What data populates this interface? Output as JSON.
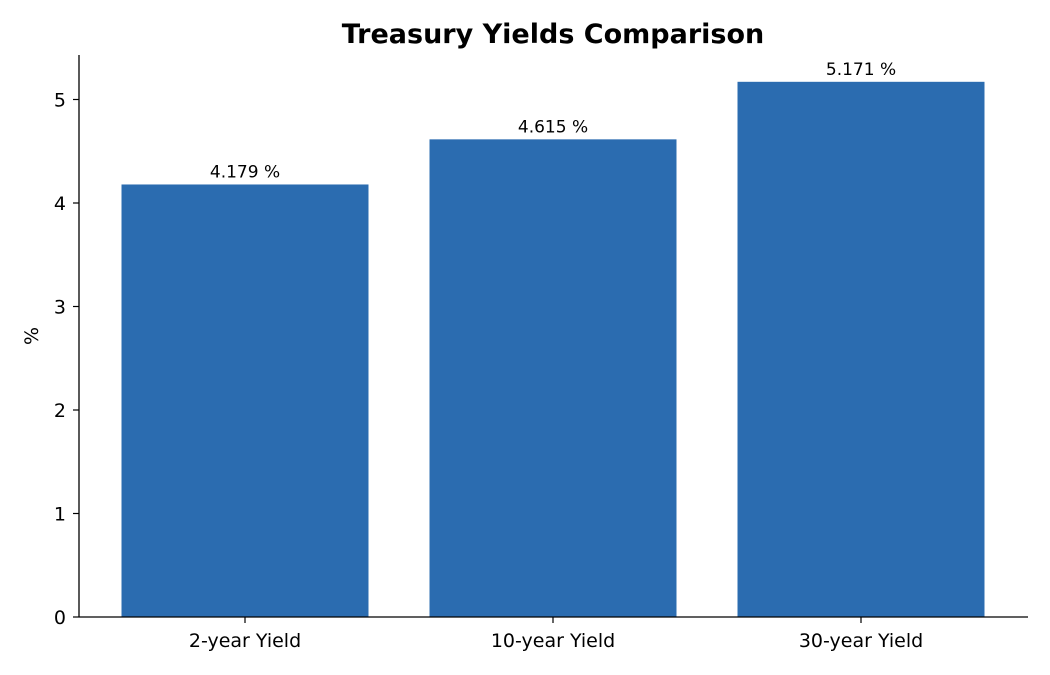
{
  "chart_data": {
    "type": "bar",
    "title": "Treasury Yields Comparison",
    "xlabel": "",
    "ylabel": "%",
    "categories": [
      "2-year Yield",
      "10-year Yield",
      "30-year Yield"
    ],
    "values": [
      4.179,
      4.615,
      5.171
    ],
    "data_labels": [
      "4.179 %",
      "4.615 %",
      "5.171 %"
    ],
    "yticks": [
      0,
      1,
      2,
      3,
      4,
      5
    ],
    "ylim": [
      0,
      5.43
    ],
    "grid": false,
    "bar_color": "#2b6cb0"
  }
}
